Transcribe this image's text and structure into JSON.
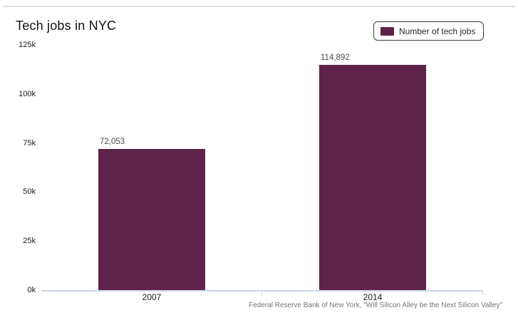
{
  "page": {
    "title": "Tech jobs in NYC",
    "source_note": "Federal Reserve Bank of New York, \"Will Silicon Alley be the Next Silicon Valley\""
  },
  "legend": {
    "label": "Number of tech jobs"
  },
  "colors": {
    "bar": "#5e2348",
    "axis_line": "#cbd7e9",
    "divider": "#e2e2e2",
    "value_label": "#4d4d4d",
    "tick_label": "#1a1a1a",
    "source_text": "#757575",
    "legend_border": "#3a3a3a"
  },
  "chart_data": {
    "type": "bar",
    "title": "Tech jobs in NYC",
    "categories": [
      "2007",
      "2014"
    ],
    "series": [
      {
        "name": "Number of tech jobs",
        "values": [
          72053,
          114892
        ]
      }
    ],
    "value_labels": [
      "72,053",
      "114,892"
    ],
    "y_ticks": [
      {
        "label": "0k",
        "value": 0
      },
      {
        "label": "25k",
        "value": 25000
      },
      {
        "label": "50k",
        "value": 50000
      },
      {
        "label": "75k",
        "value": 75000
      },
      {
        "label": "100k",
        "value": 100000
      },
      {
        "label": "125k",
        "value": 125000
      }
    ],
    "ylim": [
      0,
      125000
    ],
    "xlabel": "",
    "ylabel": "",
    "grid": false,
    "legend_position": "top-right"
  }
}
